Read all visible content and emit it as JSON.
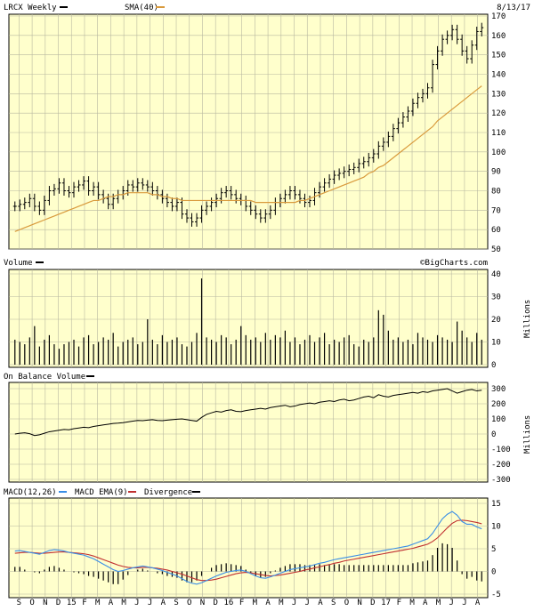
{
  "header": {
    "symbol_label": "LRCX Weekly",
    "sma_label": "SMA(40)",
    "date": "8/13/17",
    "watermark": "©BigCharts.com"
  },
  "panels": {
    "volume_label": "Volume",
    "volume_unit": "Millions",
    "obv_label": "On Balance Volume",
    "obv_unit": "Millions",
    "macd_label": "MACD(12,26)",
    "macd_ema_label": "MACD EMA(9)",
    "divergence_label": "Divergence"
  },
  "colors": {
    "price": "#000000",
    "sma": "#d99a3c",
    "macd": "#3a8ee6",
    "macd_ema": "#c03030",
    "divergence": "#000000",
    "panel_bg": "#ffffcc"
  },
  "chart_data": [
    {
      "type": "line",
      "name": "price",
      "title": "LRCX Weekly",
      "x_ticks": [
        "S",
        "O",
        "N",
        "D",
        "15",
        "F",
        "M",
        "A",
        "M",
        "J",
        "J",
        "A",
        "S",
        "O",
        "N",
        "D",
        "16",
        "F",
        "M",
        "A",
        "M",
        "J",
        "J",
        "A",
        "S",
        "O",
        "N",
        "D",
        "17",
        "F",
        "M",
        "A",
        "M",
        "J",
        "J",
        "A"
      ],
      "y_ticks": [
        50,
        60,
        70,
        80,
        90,
        100,
        110,
        120,
        130,
        140,
        150,
        160,
        170
      ],
      "ylim": [
        50,
        170
      ],
      "series": [
        {
          "name": "LRCX Weekly",
          "values": [
            72,
            73,
            74,
            76,
            72,
            70,
            75,
            80,
            81,
            84,
            80,
            79,
            82,
            83,
            85,
            80,
            82,
            78,
            76,
            73,
            76,
            78,
            80,
            83,
            82,
            84,
            83,
            82,
            80,
            78,
            76,
            74,
            72,
            74,
            68,
            66,
            64,
            66,
            70,
            72,
            74,
            76,
            79,
            80,
            78,
            76,
            75,
            72,
            70,
            68,
            66,
            68,
            70,
            74,
            76,
            78,
            80,
            78,
            76,
            74,
            75,
            79,
            82,
            84,
            86,
            88,
            89,
            90,
            91,
            92,
            94,
            95,
            97,
            99,
            103,
            105,
            108,
            112,
            115,
            118,
            121,
            125,
            128,
            130,
            133,
            145,
            152,
            158,
            160,
            163,
            158,
            152,
            148,
            155,
            162,
            164
          ]
        },
        {
          "name": "SMA(40)",
          "values": [
            59,
            60,
            61,
            62,
            63,
            64,
            65,
            66,
            67,
            68,
            69,
            70,
            71,
            72,
            73,
            74,
            75,
            75,
            76,
            77,
            77,
            78,
            78,
            79,
            79,
            79,
            79,
            79,
            78,
            78,
            77,
            77,
            76,
            76,
            75,
            75,
            75,
            75,
            75,
            75,
            75,
            75,
            75,
            75,
            75,
            75,
            75,
            75,
            75,
            74,
            74,
            74,
            74,
            74,
            74,
            74,
            74,
            74,
            75,
            75,
            76,
            77,
            78,
            79,
            80,
            81,
            82,
            83,
            84,
            85,
            86,
            87,
            89,
            90,
            92,
            93,
            95,
            97,
            99,
            101,
            103,
            105,
            107,
            109,
            111,
            113,
            116,
            118,
            120,
            122,
            124,
            126,
            128,
            130,
            132,
            134
          ]
        }
      ]
    },
    {
      "type": "bar",
      "name": "volume",
      "title": "Volume",
      "y_ticks": [
        0,
        10,
        20,
        30,
        40
      ],
      "ylim": [
        0,
        40
      ],
      "ylabel": "Millions",
      "values": [
        11,
        10,
        9,
        12,
        17,
        8,
        11,
        13,
        9,
        7,
        9,
        10,
        11,
        8,
        12,
        13,
        9,
        10,
        12,
        11,
        14,
        8,
        10,
        11,
        12,
        9,
        10,
        20,
        11,
        9,
        13,
        10,
        11,
        12,
        9,
        8,
        10,
        14,
        38,
        12,
        11,
        10,
        13,
        12,
        9,
        11,
        17,
        13,
        11,
        12,
        10,
        14,
        11,
        13,
        12,
        15,
        10,
        12,
        9,
        11,
        13,
        10,
        12,
        14,
        9,
        11,
        10,
        12,
        13,
        9,
        8,
        11,
        10,
        12,
        24,
        22,
        15,
        11,
        12,
        10,
        11,
        9,
        14,
        12,
        11,
        10,
        13,
        12,
        11,
        10,
        19,
        15,
        12,
        10,
        14,
        11
      ]
    },
    {
      "type": "line",
      "name": "obv",
      "title": "On Balance Volume",
      "y_ticks": [
        -300,
        -200,
        -100,
        0,
        100,
        200,
        300
      ],
      "ylim": [
        -300,
        300
      ],
      "ylabel": "Millions",
      "values": [
        0,
        5,
        8,
        2,
        -10,
        -5,
        5,
        15,
        20,
        25,
        30,
        28,
        35,
        40,
        45,
        42,
        50,
        55,
        60,
        65,
        70,
        72,
        75,
        80,
        85,
        90,
        88,
        92,
        95,
        90,
        88,
        92,
        95,
        98,
        100,
        95,
        90,
        85,
        110,
        130,
        140,
        150,
        145,
        155,
        160,
        150,
        148,
        155,
        160,
        165,
        170,
        165,
        175,
        180,
        185,
        190,
        180,
        185,
        195,
        200,
        205,
        200,
        210,
        215,
        220,
        215,
        225,
        230,
        220,
        225,
        235,
        245,
        250,
        240,
        260,
        250,
        245,
        255,
        260,
        265,
        270,
        275,
        270,
        280,
        275,
        285,
        290,
        295,
        300,
        285,
        270,
        280,
        290,
        295,
        285,
        290
      ]
    },
    {
      "type": "line",
      "name": "macd",
      "title": "MACD(12,26)",
      "y_ticks": [
        -5,
        0,
        5,
        10,
        15
      ],
      "ylim": [
        -5,
        15
      ],
      "series": [
        {
          "name": "MACD(12,26)",
          "values": [
            4.5,
            4.6,
            4.4,
            4.2,
            4.0,
            3.8,
            4.2,
            4.6,
            4.8,
            4.7,
            4.5,
            4.2,
            4.0,
            3.8,
            3.6,
            3.2,
            2.8,
            2.2,
            1.6,
            1.0,
            0.4,
            0.0,
            0.2,
            0.5,
            0.8,
            1.0,
            1.2,
            1.0,
            0.8,
            0.5,
            0.2,
            -0.2,
            -0.6,
            -1.0,
            -1.6,
            -2.2,
            -2.6,
            -2.8,
            -2.5,
            -2.0,
            -1.5,
            -1.0,
            -0.6,
            -0.2,
            0.0,
            0.2,
            0.3,
            0.0,
            -0.5,
            -1.0,
            -1.4,
            -1.5,
            -1.2,
            -0.8,
            -0.4,
            0.0,
            0.4,
            0.6,
            0.8,
            1.0,
            1.2,
            1.5,
            1.8,
            2.0,
            2.3,
            2.6,
            2.8,
            3.0,
            3.2,
            3.4,
            3.6,
            3.8,
            4.0,
            4.2,
            4.4,
            4.6,
            4.8,
            5.0,
            5.2,
            5.4,
            5.6,
            6.0,
            6.4,
            6.8,
            7.2,
            8.4,
            10.0,
            11.6,
            12.6,
            13.2,
            12.4,
            11.0,
            10.4,
            10.4,
            9.8,
            9.4
          ]
        },
        {
          "name": "MACD EMA(9)",
          "values": [
            4.0,
            4.1,
            4.2,
            4.2,
            4.1,
            4.0,
            4.0,
            4.1,
            4.2,
            4.3,
            4.3,
            4.2,
            4.1,
            4.0,
            3.9,
            3.7,
            3.4,
            3.0,
            2.6,
            2.2,
            1.8,
            1.4,
            1.1,
            0.9,
            0.8,
            0.8,
            0.9,
            0.9,
            0.8,
            0.7,
            0.5,
            0.3,
            0.0,
            -0.3,
            -0.6,
            -1.0,
            -1.4,
            -1.8,
            -2.0,
            -2.0,
            -1.9,
            -1.7,
            -1.4,
            -1.1,
            -0.8,
            -0.5,
            -0.3,
            -0.2,
            -0.3,
            -0.5,
            -0.7,
            -0.9,
            -1.0,
            -0.9,
            -0.8,
            -0.6,
            -0.4,
            -0.2,
            0.0,
            0.3,
            0.5,
            0.8,
            1.0,
            1.3,
            1.5,
            1.8,
            2.0,
            2.3,
            2.5,
            2.7,
            2.9,
            3.1,
            3.3,
            3.5,
            3.7,
            3.9,
            4.1,
            4.3,
            4.5,
            4.7,
            4.9,
            5.1,
            5.4,
            5.7,
            6.0,
            6.6,
            7.4,
            8.5,
            9.6,
            10.6,
            11.2,
            11.3,
            11.2,
            11.0,
            10.8,
            10.5
          ]
        }
      ]
    }
  ]
}
